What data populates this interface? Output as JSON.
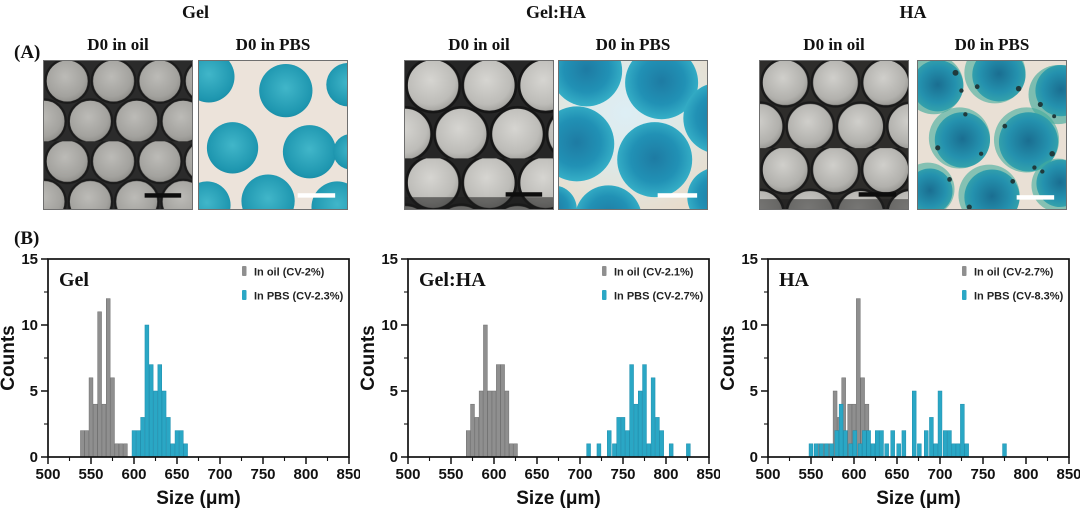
{
  "panel_a": {
    "label": "(A)",
    "groups": [
      {
        "title": "Gel",
        "oil_label": "D0 in oil",
        "pbs_label": "D0 in PBS"
      },
      {
        "title": "Gel:HA",
        "oil_label": "D0 in oil",
        "pbs_label": "D0 in PBS"
      },
      {
        "title": "HA",
        "oil_label": "D0 in oil",
        "pbs_label": "D0 in PBS"
      }
    ]
  },
  "panel_b": {
    "label": "(B)"
  },
  "colors": {
    "oil_bar": "#8f8f8f",
    "oil_edge": "#6d6d6d",
    "pbs_bar": "#2aa7c5",
    "pbs_edge": "#1c8dad",
    "frame": "#111111"
  },
  "chart_data": [
    {
      "type": "bar",
      "title": "Gel",
      "xlabel": "Size (μm)",
      "ylabel": "Counts",
      "xlim": [
        500,
        850
      ],
      "ylim": [
        0,
        15
      ],
      "x_ticks": [
        500,
        550,
        600,
        650,
        700,
        750,
        800,
        850
      ],
      "y_ticks": [
        0,
        5,
        10,
        15
      ],
      "bin_width_um": 5,
      "grid": false,
      "legend_position": "top-right",
      "series": [
        {
          "name": "In oil (CV-2%)",
          "color": "#8f8f8f",
          "edge": "#6d6d6d",
          "x": [
            540,
            545,
            550,
            555,
            560,
            565,
            570,
            575,
            580,
            585,
            590
          ],
          "counts": [
            2,
            2,
            6,
            4,
            11,
            4,
            12,
            6,
            1,
            1,
            1
          ]
        },
        {
          "name": "In PBS (CV-2.3%)",
          "color": "#2aa7c5",
          "edge": "#1c8dad",
          "x": [
            600,
            605,
            610,
            615,
            620,
            625,
            630,
            635,
            640,
            645,
            650,
            655,
            660
          ],
          "counts": [
            2,
            2,
            3,
            10,
            7,
            5,
            7,
            5,
            3,
            1,
            2,
            2,
            1
          ]
        }
      ]
    },
    {
      "type": "bar",
      "title": "Gel:HA",
      "xlabel": "Size (μm)",
      "ylabel": "Counts",
      "xlim": [
        500,
        850
      ],
      "ylim": [
        0,
        15
      ],
      "x_ticks": [
        500,
        550,
        600,
        650,
        700,
        750,
        800,
        850
      ],
      "y_ticks": [
        0,
        5,
        10,
        15
      ],
      "bin_width_um": 5,
      "grid": false,
      "legend_position": "top-right",
      "series": [
        {
          "name": "In oil (CV-2.1%)",
          "color": "#8f8f8f",
          "edge": "#6d6d6d",
          "x": [
            570,
            575,
            580,
            585,
            590,
            595,
            600,
            605,
            610,
            615,
            620,
            625
          ],
          "counts": [
            2,
            4,
            3,
            5,
            10,
            5,
            5,
            7,
            7,
            5,
            1,
            1
          ]
        },
        {
          "name": "In PBS (CV-2.7%)",
          "color": "#2aa7c5",
          "edge": "#1c8dad",
          "x": [
            710,
            722,
            734,
            740,
            745,
            750,
            755,
            760,
            765,
            770,
            775,
            780,
            785,
            790,
            795,
            806,
            826
          ],
          "counts": [
            1,
            1,
            2,
            1,
            3,
            3,
            2,
            7,
            4,
            5,
            7,
            1,
            6,
            3,
            2,
            1,
            1
          ]
        }
      ]
    },
    {
      "type": "bar",
      "title": "HA",
      "xlabel": "Size (μm)",
      "ylabel": "Counts",
      "xlim": [
        500,
        850
      ],
      "ylim": [
        0,
        15
      ],
      "x_ticks": [
        500,
        550,
        600,
        650,
        700,
        750,
        800,
        850
      ],
      "y_ticks": [
        0,
        5,
        10,
        15
      ],
      "bin_width_um": 5,
      "grid": false,
      "legend_position": "top-right",
      "series": [
        {
          "name": "In oil (CV-2.7%)",
          "color": "#8f8f8f",
          "edge": "#6d6d6d",
          "x": [
            560,
            565,
            570,
            578,
            583,
            588,
            595,
            600,
            605,
            610,
            615,
            620,
            625
          ],
          "counts": [
            1,
            1,
            1,
            5,
            3,
            6,
            4,
            4,
            12,
            6,
            4,
            1,
            1
          ]
        },
        {
          "name": "In PBS (CV-8.3%)",
          "color": "#2aa7c5",
          "edge": "#1c8dad",
          "x": [
            550,
            556,
            562,
            568,
            574,
            580,
            585,
            590,
            596,
            601,
            607,
            612,
            617,
            622,
            627,
            632,
            638,
            645,
            652,
            658,
            670,
            676,
            684,
            690,
            695,
            700,
            706,
            711,
            716,
            721,
            726,
            731,
            775
          ],
          "counts": [
            1,
            1,
            1,
            1,
            1,
            2,
            4,
            2,
            1,
            2,
            1,
            2,
            2,
            1,
            2,
            2,
            1,
            2,
            1,
            2,
            5,
            1,
            2,
            3,
            1,
            5,
            2,
            2,
            1,
            1,
            4,
            1,
            1
          ]
        }
      ]
    }
  ]
}
